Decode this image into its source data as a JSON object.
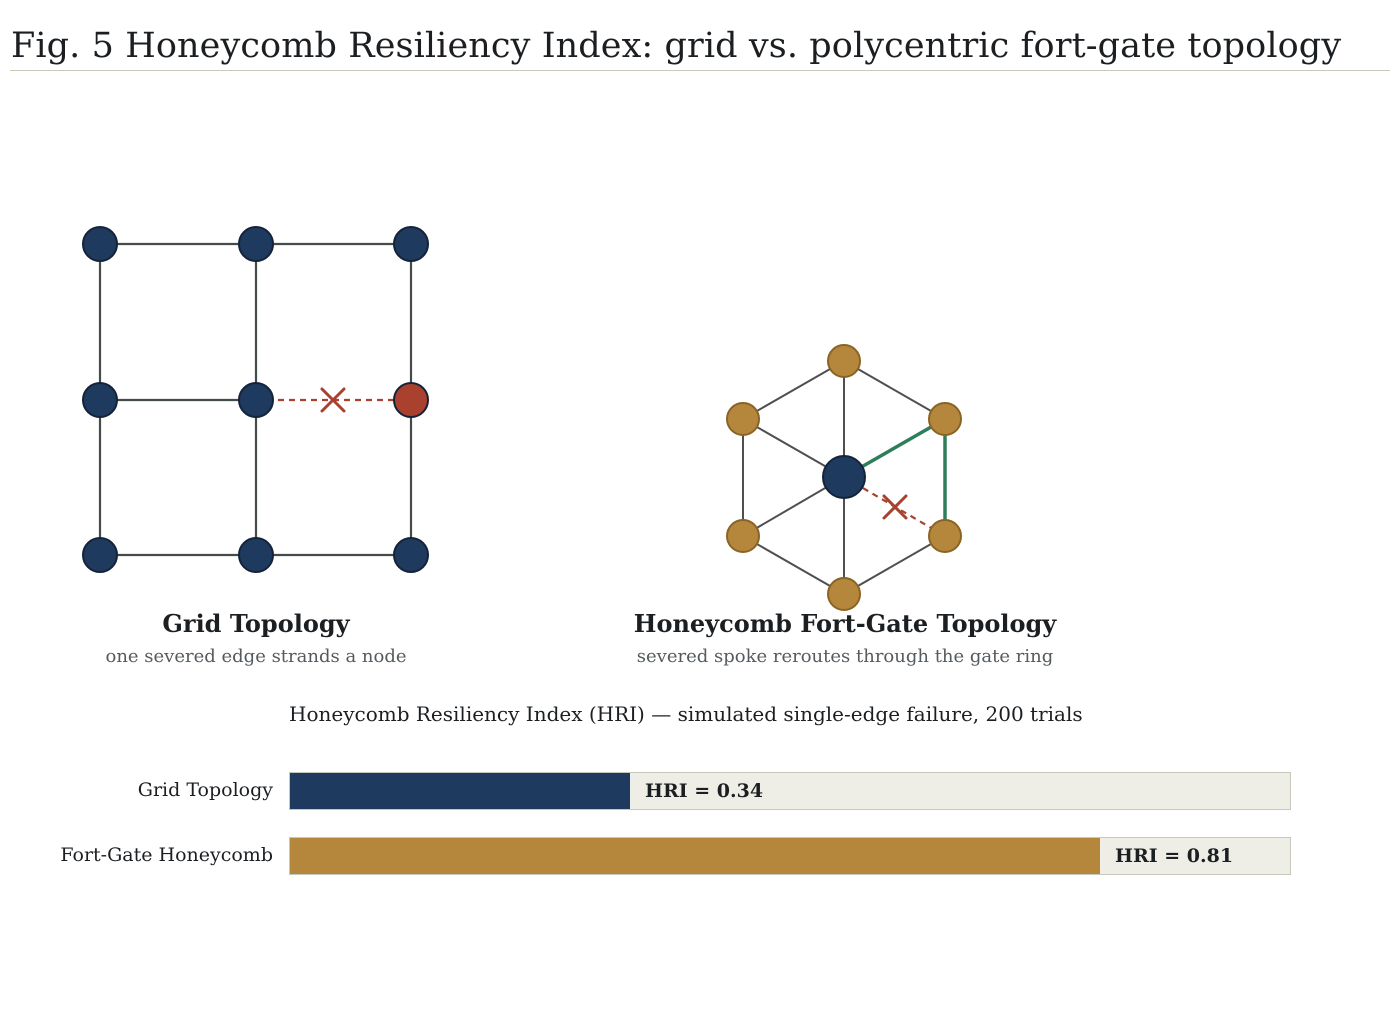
{
  "figure": {
    "title": "Fig. 5  Honeycomb Resiliency Index: grid vs. polycentric fort-gate topology"
  },
  "panels": {
    "grid": {
      "title": "Grid Topology",
      "subtitle": "one severed edge strands a node"
    },
    "honeycomb": {
      "title": "Honeycomb Fort-Gate Topology",
      "subtitle": "severed spoke reroutes through the gate ring"
    }
  },
  "chart": {
    "title": "Honeycomb Resiliency Index (HRI) — simulated single-edge failure, 200 trials"
  },
  "chart_data": {
    "type": "bar",
    "orientation": "horizontal",
    "categories": [
      "Grid Topology",
      "Fort-Gate Honeycomb"
    ],
    "values": [
      0.34,
      0.81
    ],
    "value_labels": [
      "HRI = 0.34",
      "HRI = 0.81"
    ],
    "xlim": [
      0,
      1
    ],
    "colors": [
      "#1f3a5f",
      "#b5873c"
    ]
  },
  "colors": {
    "node_navy": "#1f3a5f",
    "node_gold": "#b5873c",
    "failure_red": "#a9412e",
    "reroute_green": "#2e7d5b",
    "edge_gray": "#4a4f4c"
  }
}
